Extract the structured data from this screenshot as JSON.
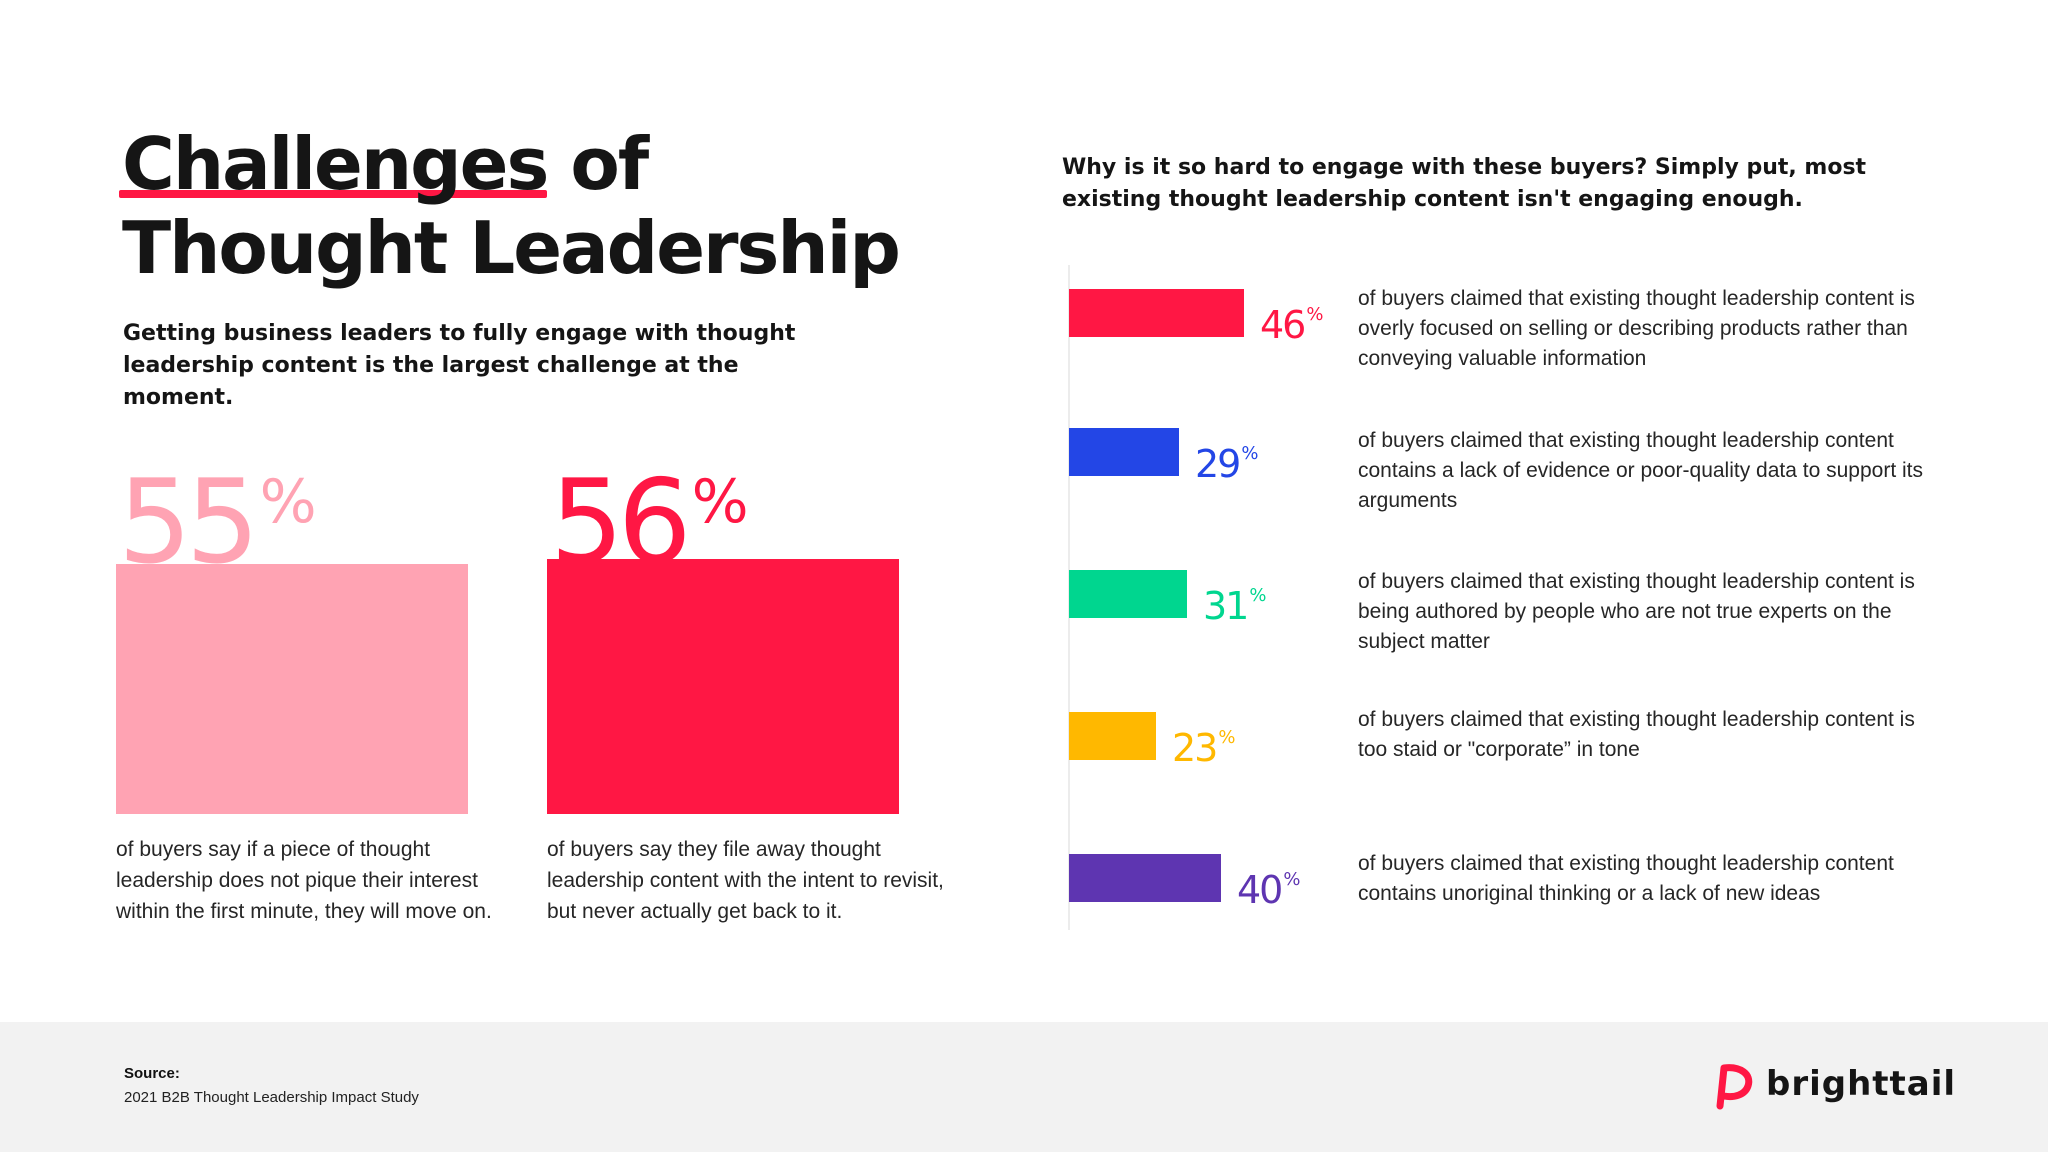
{
  "title": {
    "highlight": "Challenges",
    "rest_line1": " of",
    "line2": "Thought Leadership"
  },
  "subtitle": "Getting business leaders to fully engage with thought leadership content is the largest challenge at the moment.",
  "stats": [
    {
      "value": 55,
      "number": "55",
      "percent_sign": "%",
      "color": "#ffa3b3",
      "caption": "of buyers say if a piece of thought leadership does not pique their interest within the first minute, they will move on."
    },
    {
      "value": 56,
      "number": "56",
      "percent_sign": "%",
      "color": "#ff1744",
      "caption": "of buyers say they file away thought leadership content with the intent to revisit, but never actually get back to it."
    }
  ],
  "question": "Why is it so hard to engage with these buyers? Simply put, most existing thought leadership content isn't engaging enough.",
  "chart_data": {
    "type": "bar",
    "orientation": "horizontal",
    "title": "Why is it so hard to engage with these buyers? Simply put, most existing thought leadership content isn't engaging enough.",
    "xlabel": "",
    "ylabel": "",
    "unit": "%",
    "xlim": [
      0,
      50
    ],
    "grid": false,
    "categories": [
      "of buyers claimed that existing thought leadership content is overly focused on selling or describing products rather than conveying valuable information",
      "of buyers claimed that existing thought leadership content contains a lack of evidence or poor-quality data to support its arguments",
      "of buyers claimed that existing thought leadership content is being authored by people who are not true experts on the subject matter",
      "of buyers claimed that existing thought leadership content is too staid or \"corporate” in tone",
      "of buyers claimed that existing thought leadership content contains unoriginal thinking or a lack of new ideas"
    ],
    "values": [
      46,
      29,
      31,
      23,
      40
    ],
    "labels": [
      "46",
      "29",
      "31",
      "23",
      "40"
    ],
    "colors": [
      "#ff1744",
      "#2346e6",
      "#00d68f",
      "#ffb800",
      "#5e35b1"
    ]
  },
  "footer": {
    "source_label": "Source:",
    "source_text": "2021 B2B Thought Leadership Impact Study",
    "brand": "brighttail",
    "brand_color": "#ff1744"
  }
}
